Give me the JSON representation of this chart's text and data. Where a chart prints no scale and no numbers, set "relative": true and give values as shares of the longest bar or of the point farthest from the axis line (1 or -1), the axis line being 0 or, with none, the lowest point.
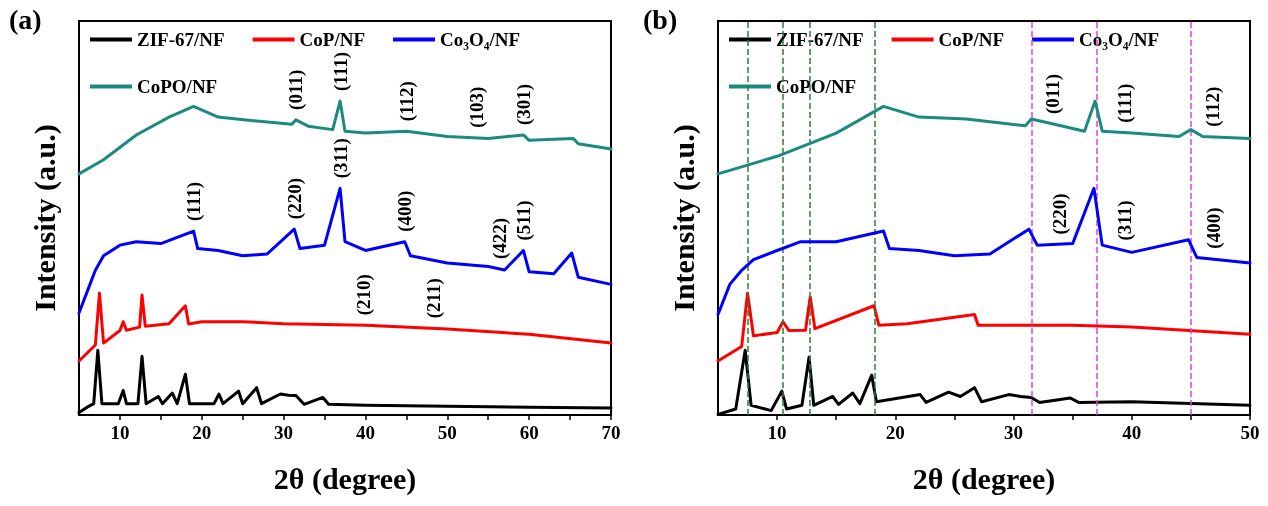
{
  "chart_data": [
    {
      "type": "line",
      "title": "(a)",
      "xlabel": "2θ (degree)",
      "ylabel": "Intensity (a.u.)",
      "relative": true,
      "legend": "top left",
      "grid": false,
      "marker": "none",
      "line_style": "solid",
      "xlim": [
        5,
        70
      ],
      "xticks": [
        10,
        {
          "value": 15,
          "label": null
        },
        20,
        {
          "value": 25,
          "label": null
        },
        30,
        {
          "value": 35,
          "label": null
        },
        40,
        {
          "value": 45,
          "label": null
        },
        50,
        {
          "value": 55,
          "label": null
        },
        60,
        {
          "value": 65,
          "label": null
        },
        70
      ],
      "series": [
        {
          "name": "ZIF-67/NF",
          "color": "#000000",
          "x": [
            5,
            6,
            6.8,
            7.3,
            7.8,
            9.8,
            10.4,
            10.8,
            12.2,
            12.7,
            13.2,
            14.7,
            15.2,
            16.4,
            17,
            18,
            18.5,
            21.5,
            22.1,
            22.6,
            24.5,
            25,
            26.7,
            27.3,
            29.6,
            30.6,
            31.5,
            32.5,
            34.8,
            35.5,
            40,
            50,
            60,
            70
          ],
          "values": [
            0.008,
            0.025,
            0.036,
            0.206,
            0.036,
            0.036,
            0.078,
            0.036,
            0.036,
            0.187,
            0.036,
            0.059,
            0.036,
            0.07,
            0.036,
            0.13,
            0.036,
            0.036,
            0.067,
            0.036,
            0.076,
            0.036,
            0.087,
            0.036,
            0.067,
            0.063,
            0.062,
            0.034,
            0.056,
            0.034,
            0.031,
            0.028,
            0.025,
            0.022
          ]
        },
        {
          "name": "CoP/NF",
          "color": "#ff0000",
          "x": [
            5,
            7,
            7.5,
            8,
            10,
            10.4,
            10.8,
            12.4,
            12.7,
            13.1,
            16,
            18,
            18.4,
            20,
            25,
            30,
            40,
            50,
            60,
            70
          ],
          "values": [
            0.172,
            0.223,
            0.388,
            0.229,
            0.269,
            0.297,
            0.27,
            0.28,
            0.382,
            0.283,
            0.291,
            0.348,
            0.29,
            0.297,
            0.297,
            0.291,
            0.286,
            0.274,
            0.257,
            0.229
          ]
        },
        {
          "name": "Co₃O₄/NF",
          "color": "#0000ff",
          "x": [
            5,
            6,
            7,
            8,
            10,
            12,
            15,
            19,
            19.5,
            22,
            25,
            28,
            31.3,
            32,
            35,
            36.9,
            37.5,
            40,
            44.8,
            45.5,
            50,
            55,
            57,
            59.3,
            60,
            63,
            65.2,
            66,
            70
          ],
          "values": [
            0.325,
            0.393,
            0.461,
            0.507,
            0.541,
            0.552,
            0.546,
            0.586,
            0.53,
            0.524,
            0.507,
            0.513,
            0.592,
            0.53,
            0.541,
            0.722,
            0.552,
            0.524,
            0.552,
            0.507,
            0.484,
            0.473,
            0.462,
            0.524,
            0.456,
            0.45,
            0.516,
            0.439,
            0.416
          ]
        },
        {
          "name": "CoPO/NF",
          "color": "#1b8a80",
          "x": [
            5,
            8,
            12,
            16,
            19,
            22,
            26,
            31,
            31.5,
            33,
            36,
            36.9,
            37.5,
            40,
            45,
            50,
            55,
            59.3,
            60,
            65.4,
            66,
            70
          ],
          "values": [
            0.768,
            0.813,
            0.892,
            0.949,
            0.983,
            0.949,
            0.938,
            0.926,
            0.94,
            0.92,
            0.909,
            1.0,
            0.904,
            0.898,
            0.904,
            0.887,
            0.881,
            0.892,
            0.875,
            0.881,
            0.864,
            0.847
          ]
        }
      ],
      "annotations": [
        {
          "text": "(011)",
          "x": 31.5,
          "y": 0.94
        },
        {
          "text": "(111)",
          "x": 36.9,
          "y": 1.0
        },
        {
          "text": "(112)",
          "x": 45,
          "y": 0.904
        },
        {
          "text": "(103)",
          "x": 53.6,
          "y": 0.883
        },
        {
          "text": "(301)",
          "x": 59.3,
          "y": 0.892
        },
        {
          "text": "(111)",
          "x": 19,
          "y": 0.586
        },
        {
          "text": "(220)",
          "x": 31.3,
          "y": 0.592
        },
        {
          "text": "(311)",
          "x": 36.9,
          "y": 0.722
        },
        {
          "text": "(400)",
          "x": 44.8,
          "y": 0.552
        },
        {
          "text": "(422)",
          "x": 56.4,
          "y": 0.465
        },
        {
          "text": "(511)",
          "x": 59.3,
          "y": 0.524
        },
        {
          "text": "(210)",
          "x": 39.7,
          "y": 0.286
        },
        {
          "text": "(211)",
          "x": 48.3,
          "y": 0.276
        }
      ]
    },
    {
      "type": "line",
      "title": "(b)",
      "xlabel": "2θ (degree)",
      "ylabel": "Intensity (a.u.)",
      "relative": true,
      "legend": "top left",
      "grid": false,
      "marker": "none",
      "line_style": "solid",
      "xlim": [
        5,
        50
      ],
      "xticks": [
        10,
        {
          "value": 15,
          "label": null
        },
        20,
        {
          "value": 25,
          "label": null
        },
        30,
        {
          "value": 35,
          "label": null
        },
        40,
        {
          "value": 45,
          "label": null
        },
        50
      ],
      "series": [
        {
          "name": "ZIF-67/NF",
          "color": "#000000",
          "x": [
            5,
            6.5,
            7.3,
            7.8,
            9.5,
            10.4,
            10.8,
            12.1,
            12.7,
            13.1,
            14.7,
            15.2,
            16.4,
            17,
            18,
            18.4,
            22.1,
            22.6,
            24.5,
            25.5,
            26.7,
            27.3,
            29.6,
            30.6,
            31.5,
            32.2,
            34.8,
            35.5,
            40,
            50
          ],
          "values": [
            0.002,
            0.019,
            0.206,
            0.031,
            0.014,
            0.076,
            0.019,
            0.031,
            0.184,
            0.031,
            0.059,
            0.034,
            0.07,
            0.036,
            0.127,
            0.042,
            0.065,
            0.04,
            0.073,
            0.059,
            0.087,
            0.042,
            0.065,
            0.059,
            0.056,
            0.04,
            0.054,
            0.04,
            0.042,
            0.031
          ]
        },
        {
          "name": "CoP/NF",
          "color": "#ff0000",
          "x": [
            5,
            7,
            7.5,
            8,
            10,
            10.5,
            11,
            12.4,
            12.8,
            13.2,
            18.2,
            18.6,
            21,
            26.7,
            27,
            35,
            40,
            50
          ],
          "values": [
            0.172,
            0.218,
            0.388,
            0.252,
            0.263,
            0.297,
            0.269,
            0.27,
            0.376,
            0.275,
            0.348,
            0.286,
            0.291,
            0.32,
            0.286,
            0.286,
            0.28,
            0.257
          ]
        },
        {
          "name": "Co₃O₄/NF",
          "color": "#0000ff",
          "x": [
            5,
            6,
            7,
            8,
            10,
            12,
            15,
            19,
            19.5,
            22,
            25,
            28,
            31.3,
            32,
            35,
            36.8,
            37.5,
            40,
            44.8,
            45.5,
            50
          ],
          "values": [
            0.32,
            0.416,
            0.461,
            0.495,
            0.524,
            0.552,
            0.552,
            0.586,
            0.53,
            0.524,
            0.507,
            0.513,
            0.592,
            0.541,
            0.546,
            0.722,
            0.541,
            0.518,
            0.558,
            0.502,
            0.484
          ]
        },
        {
          "name": "CoPO/NF",
          "color": "#1b8a80",
          "x": [
            5,
            10,
            15,
            19,
            22,
            26,
            31,
            31.5,
            33,
            36,
            36.9,
            37.5,
            40,
            44,
            45,
            46,
            50
          ],
          "values": [
            0.768,
            0.824,
            0.898,
            0.983,
            0.949,
            0.943,
            0.921,
            0.943,
            0.93,
            0.904,
            1.0,
            0.904,
            0.898,
            0.887,
            0.909,
            0.887,
            0.881
          ]
        }
      ],
      "ref_lines": [
        {
          "axis": "x",
          "value": 31.5,
          "color": "#e040e0",
          "line_style": "dashed"
        },
        {
          "axis": "x",
          "value": 37,
          "color": "#e040e0",
          "line_style": "dashed"
        },
        {
          "axis": "x",
          "value": 45,
          "color": "#e040e0",
          "line_style": "dashed"
        },
        {
          "axis": "x",
          "value": 7.5,
          "color": "#2e7d32",
          "line_style": "dashed"
        },
        {
          "axis": "x",
          "value": 10.5,
          "color": "#2e7d32",
          "line_style": "dashed"
        },
        {
          "axis": "x",
          "value": 12.8,
          "color": "#2e7d32",
          "line_style": "dashed"
        },
        {
          "axis": "x",
          "value": 18.3,
          "color": "#2e7d32",
          "line_style": "dashed"
        }
      ],
      "annotations": [
        {
          "text": "(011)",
          "x": 33.3,
          "y": 0.927
        },
        {
          "text": "(111)",
          "x": 39.4,
          "y": 0.899
        },
        {
          "text": "(112)",
          "x": 46.8,
          "y": 0.886
        },
        {
          "text": "(220)",
          "x": 33.9,
          "y": 0.543
        },
        {
          "text": "(311)",
          "x": 39.4,
          "y": 0.524
        },
        {
          "text": "(400)",
          "x": 46.9,
          "y": 0.498
        }
      ]
    }
  ]
}
